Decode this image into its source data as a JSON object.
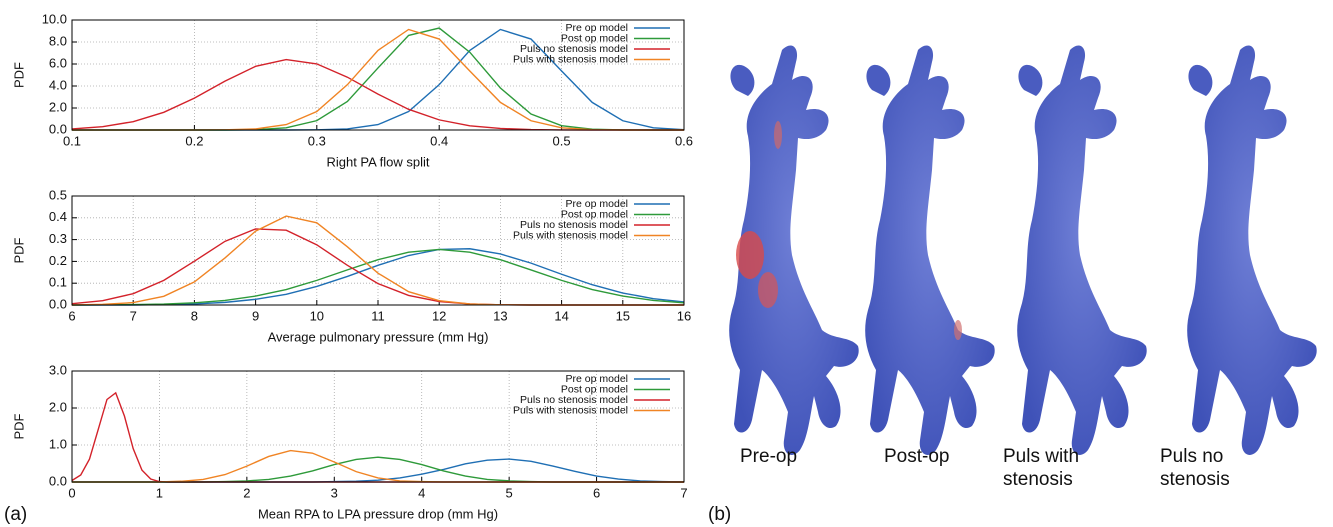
{
  "chart_data": [
    {
      "type": "line",
      "ylabel": "PDF",
      "xlabel": "Right PA flow split",
      "x": [
        0.1,
        0.125,
        0.15,
        0.175,
        0.2,
        0.225,
        0.25,
        0.275,
        0.3,
        0.325,
        0.35,
        0.375,
        0.4,
        0.425,
        0.45,
        0.475,
        0.5,
        0.525,
        0.55,
        0.575,
        0.6
      ],
      "xlim": [
        0.1,
        0.6
      ],
      "xticks": [
        0.1,
        0.2,
        0.3,
        0.4,
        0.5,
        0.6
      ],
      "ylim": [
        0,
        10
      ],
      "yticks": [
        {
          "value": 0,
          "label": "0.0"
        },
        {
          "value": 2,
          "label": "2.0"
        },
        {
          "value": 4,
          "label": "4.0"
        },
        {
          "value": 6,
          "label": "6.0"
        },
        {
          "value": 8,
          "label": "8.0"
        },
        {
          "value": 10,
          "label": "10.0"
        }
      ],
      "grid": true,
      "legend": "top-right",
      "series": [
        {
          "name": "Pre op model",
          "color": "#1f6fb4",
          "values": [
            0,
            0,
            0,
            0,
            0,
            0,
            0,
            0,
            0.02,
            0.1,
            0.49,
            1.68,
            4.12,
            7.24,
            9.14,
            8.27,
            5.36,
            2.51,
            0.84,
            0.2,
            0.03
          ]
        },
        {
          "name": "Post op model",
          "color": "#2e9a3a",
          "values": [
            0,
            0,
            0,
            0,
            0,
            0,
            0.03,
            0.2,
            0.85,
            2.59,
            5.64,
            8.6,
            9.27,
            7.07,
            3.82,
            1.45,
            0.39,
            0.07,
            0.01,
            0,
            0
          ]
        },
        {
          "name": "Puls no stenosis model",
          "color": "#d3222a",
          "values": [
            0.1,
            0.3,
            0.76,
            1.61,
            2.9,
            4.44,
            5.79,
            6.4,
            6.01,
            4.8,
            3.26,
            1.88,
            0.92,
            0.38,
            0.14,
            0.04,
            0.01,
            0,
            0,
            0,
            0
          ]
        },
        {
          "name": "Puls with stenosis model",
          "color": "#f08424",
          "values": [
            0,
            0,
            0,
            0,
            0,
            0.02,
            0.1,
            0.49,
            1.68,
            4.12,
            7.24,
            9.14,
            8.27,
            5.36,
            2.51,
            0.84,
            0.2,
            0.03,
            0,
            0,
            0
          ]
        }
      ]
    },
    {
      "type": "line",
      "ylabel": "PDF",
      "xlabel": "Average pulmonary pressure (mm Hg)",
      "x": [
        6,
        6.5,
        7,
        7.5,
        8,
        8.5,
        9,
        9.5,
        10,
        10.5,
        11,
        11.5,
        12,
        12.5,
        13,
        13.5,
        14,
        14.5,
        15,
        15.5,
        16
      ],
      "xlim": [
        6,
        16
      ],
      "xticks": [
        6,
        7,
        8,
        9,
        10,
        11,
        12,
        13,
        14,
        15,
        16
      ],
      "ylim": [
        0,
        0.5
      ],
      "yticks": [
        {
          "value": 0,
          "label": "0.0"
        },
        0.1,
        0.2,
        0.3,
        0.4,
        0.5
      ],
      "grid": true,
      "legend": "top-right",
      "series": [
        {
          "name": "Pre op model",
          "color": "#1f6fb4",
          "values": [
            0,
            0,
            0,
            0.002,
            0.005,
            0.012,
            0.026,
            0.049,
            0.085,
            0.131,
            0.182,
            0.227,
            0.255,
            0.258,
            0.234,
            0.192,
            0.141,
            0.093,
            0.055,
            0.029,
            0.014
          ]
        },
        {
          "name": "Post op model",
          "color": "#2e9a3a",
          "values": [
            0,
            0.001,
            0.002,
            0.004,
            0.01,
            0.021,
            0.041,
            0.071,
            0.113,
            0.161,
            0.208,
            0.242,
            0.255,
            0.242,
            0.208,
            0.161,
            0.113,
            0.071,
            0.041,
            0.021,
            0.01
          ]
        },
        {
          "name": "Puls no stenosis model",
          "color": "#d3222a",
          "values": [
            0.006,
            0.02,
            0.052,
            0.113,
            0.201,
            0.292,
            0.349,
            0.343,
            0.276,
            0.182,
            0.098,
            0.044,
            0.016,
            0.005,
            0.001,
            0,
            0,
            0,
            0,
            0,
            0
          ]
        },
        {
          "name": "Puls with stenosis model",
          "color": "#f08424",
          "values": [
            0,
            0.003,
            0.011,
            0.04,
            0.106,
            0.216,
            0.339,
            0.408,
            0.377,
            0.267,
            0.146,
            0.061,
            0.02,
            0.005,
            0.001,
            0,
            0,
            0,
            0,
            0,
            0
          ]
        }
      ]
    },
    {
      "type": "line",
      "ylabel": "PDF",
      "xlabel": "Mean RPA to LPA pressure drop (mm Hg)",
      "x": [
        0,
        0.25,
        0.5,
        0.75,
        1,
        1.25,
        1.5,
        1.75,
        2,
        2.25,
        2.5,
        2.75,
        3,
        3.25,
        3.5,
        3.75,
        4,
        4.25,
        4.5,
        4.75,
        5,
        5.25,
        5.5,
        5.75,
        6,
        6.25,
        6.5,
        6.75,
        7
      ],
      "xlim": [
        0,
        7
      ],
      "xticks": [
        0,
        1,
        2,
        3,
        4,
        5,
        6,
        7
      ],
      "ylim": [
        0,
        3
      ],
      "yticks": [
        {
          "value": 0,
          "label": "0.0"
        },
        {
          "value": 1,
          "label": "1.0"
        },
        {
          "value": 2,
          "label": "2.0"
        },
        {
          "value": 3,
          "label": "3.0"
        }
      ],
      "grid": true,
      "legend": "top-right",
      "series": [
        {
          "name": "Pre op model",
          "color": "#1f6fb4",
          "values": [
            0,
            0,
            0,
            0,
            0,
            0,
            0,
            0,
            0,
            0,
            0,
            0,
            0.01,
            0.02,
            0.05,
            0.11,
            0.21,
            0.34,
            0.49,
            0.59,
            0.62,
            0.56,
            0.43,
            0.29,
            0.16,
            0.08,
            0.03,
            0.01,
            0
          ]
        },
        {
          "name": "Post op model",
          "color": "#2e9a3a",
          "values": [
            0,
            0,
            0,
            0,
            0,
            0,
            0,
            0.01,
            0.03,
            0.07,
            0.16,
            0.3,
            0.47,
            0.61,
            0.67,
            0.61,
            0.47,
            0.3,
            0.16,
            0.07,
            0.03,
            0.01,
            0,
            0,
            0,
            0,
            0,
            0,
            0
          ]
        },
        {
          "name": "Puls no stenosis model",
          "color": "#d3222a",
          "x": [
            0,
            0.1,
            0.2,
            0.3,
            0.4,
            0.5,
            0.6,
            0.7,
            0.8,
            0.9,
            1,
            1.1,
            1.2,
            7
          ],
          "values": [
            0.04,
            0.19,
            0.62,
            1.42,
            2.23,
            2.41,
            1.78,
            0.9,
            0.32,
            0.08,
            0.01,
            0,
            0,
            0
          ]
        },
        {
          "name": "Puls with stenosis model",
          "color": "#f08424",
          "values": [
            0,
            0,
            0,
            0,
            0,
            0.02,
            0.07,
            0.2,
            0.43,
            0.69,
            0.85,
            0.78,
            0.54,
            0.28,
            0.11,
            0.03,
            0.01,
            0,
            0,
            0,
            0,
            0,
            0,
            0,
            0,
            0,
            0,
            0,
            0
          ]
        }
      ]
    }
  ],
  "panel_labels": [
    "(a)",
    "(b)"
  ],
  "image_captions": [
    [
      "Pre-op"
    ],
    [
      "Post-op"
    ],
    [
      "Puls with",
      "stenosis"
    ],
    [
      "Puls no",
      "stenosis"
    ]
  ]
}
